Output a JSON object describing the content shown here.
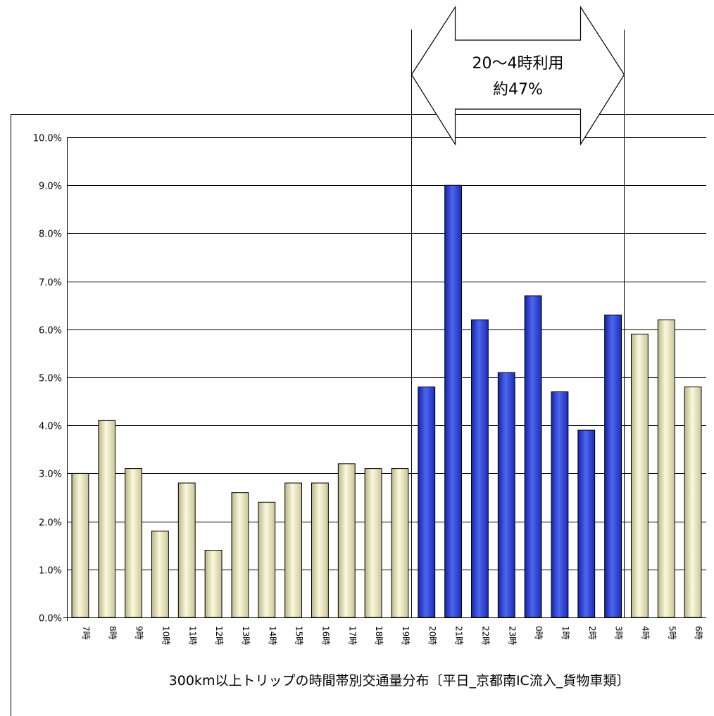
{
  "chart_data": {
    "type": "bar",
    "title": "",
    "caption": "300km以上トリップの時間帯別交通量分布〔平日_京都南IC流入_貨物車類〕",
    "categories": [
      "7時",
      "8時",
      "9時",
      "10時",
      "11時",
      "12時",
      "13時",
      "14時",
      "15時",
      "16時",
      "17時",
      "18時",
      "19時",
      "20時",
      "21時",
      "22時",
      "23時",
      "0時",
      "1時",
      "2時",
      "3時",
      "4時",
      "5時",
      "6時"
    ],
    "values": [
      3.0,
      4.1,
      3.1,
      1.8,
      2.8,
      1.4,
      2.6,
      2.4,
      2.8,
      2.8,
      3.2,
      3.1,
      3.1,
      4.8,
      9.0,
      6.2,
      5.1,
      6.7,
      4.7,
      3.9,
      6.3,
      5.9,
      6.2,
      4.8
    ],
    "highlight_categories": [
      "20時",
      "21時",
      "22時",
      "23時",
      "0時",
      "1時",
      "2時",
      "3時"
    ],
    "y_ticks": [
      "0.0%",
      "1.0%",
      "2.0%",
      "3.0%",
      "4.0%",
      "5.0%",
      "6.0%",
      "7.0%",
      "8.0%",
      "9.0%",
      "10.0%"
    ],
    "ylim": [
      0,
      10
    ],
    "y_unit": "%",
    "grid": true,
    "colors": {
      "normal_bar": "#f2f0c0",
      "normal_bar_edge": "#b0ac78",
      "highlight_bar": "#1e34c8",
      "highlight_bar_edge": "#7a8cf0"
    },
    "annotation": {
      "line1": "20～4時利用",
      "line2": "約47%",
      "span": [
        "20時",
        "3時"
      ]
    }
  }
}
